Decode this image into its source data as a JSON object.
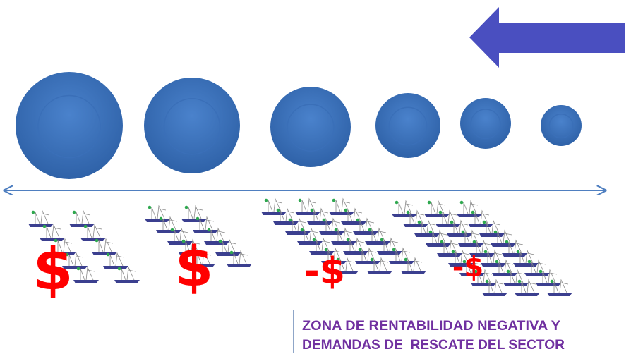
{
  "labels": [
    "$",
    "$",
    "-$",
    "-$"
  ],
  "note": {
    "lines": [
      "ZONA DE RENTABILIDAD NEGATIVA Y",
      "DEMANDAS DE  RESCATE DEL SECTOR"
    ]
  }
}
